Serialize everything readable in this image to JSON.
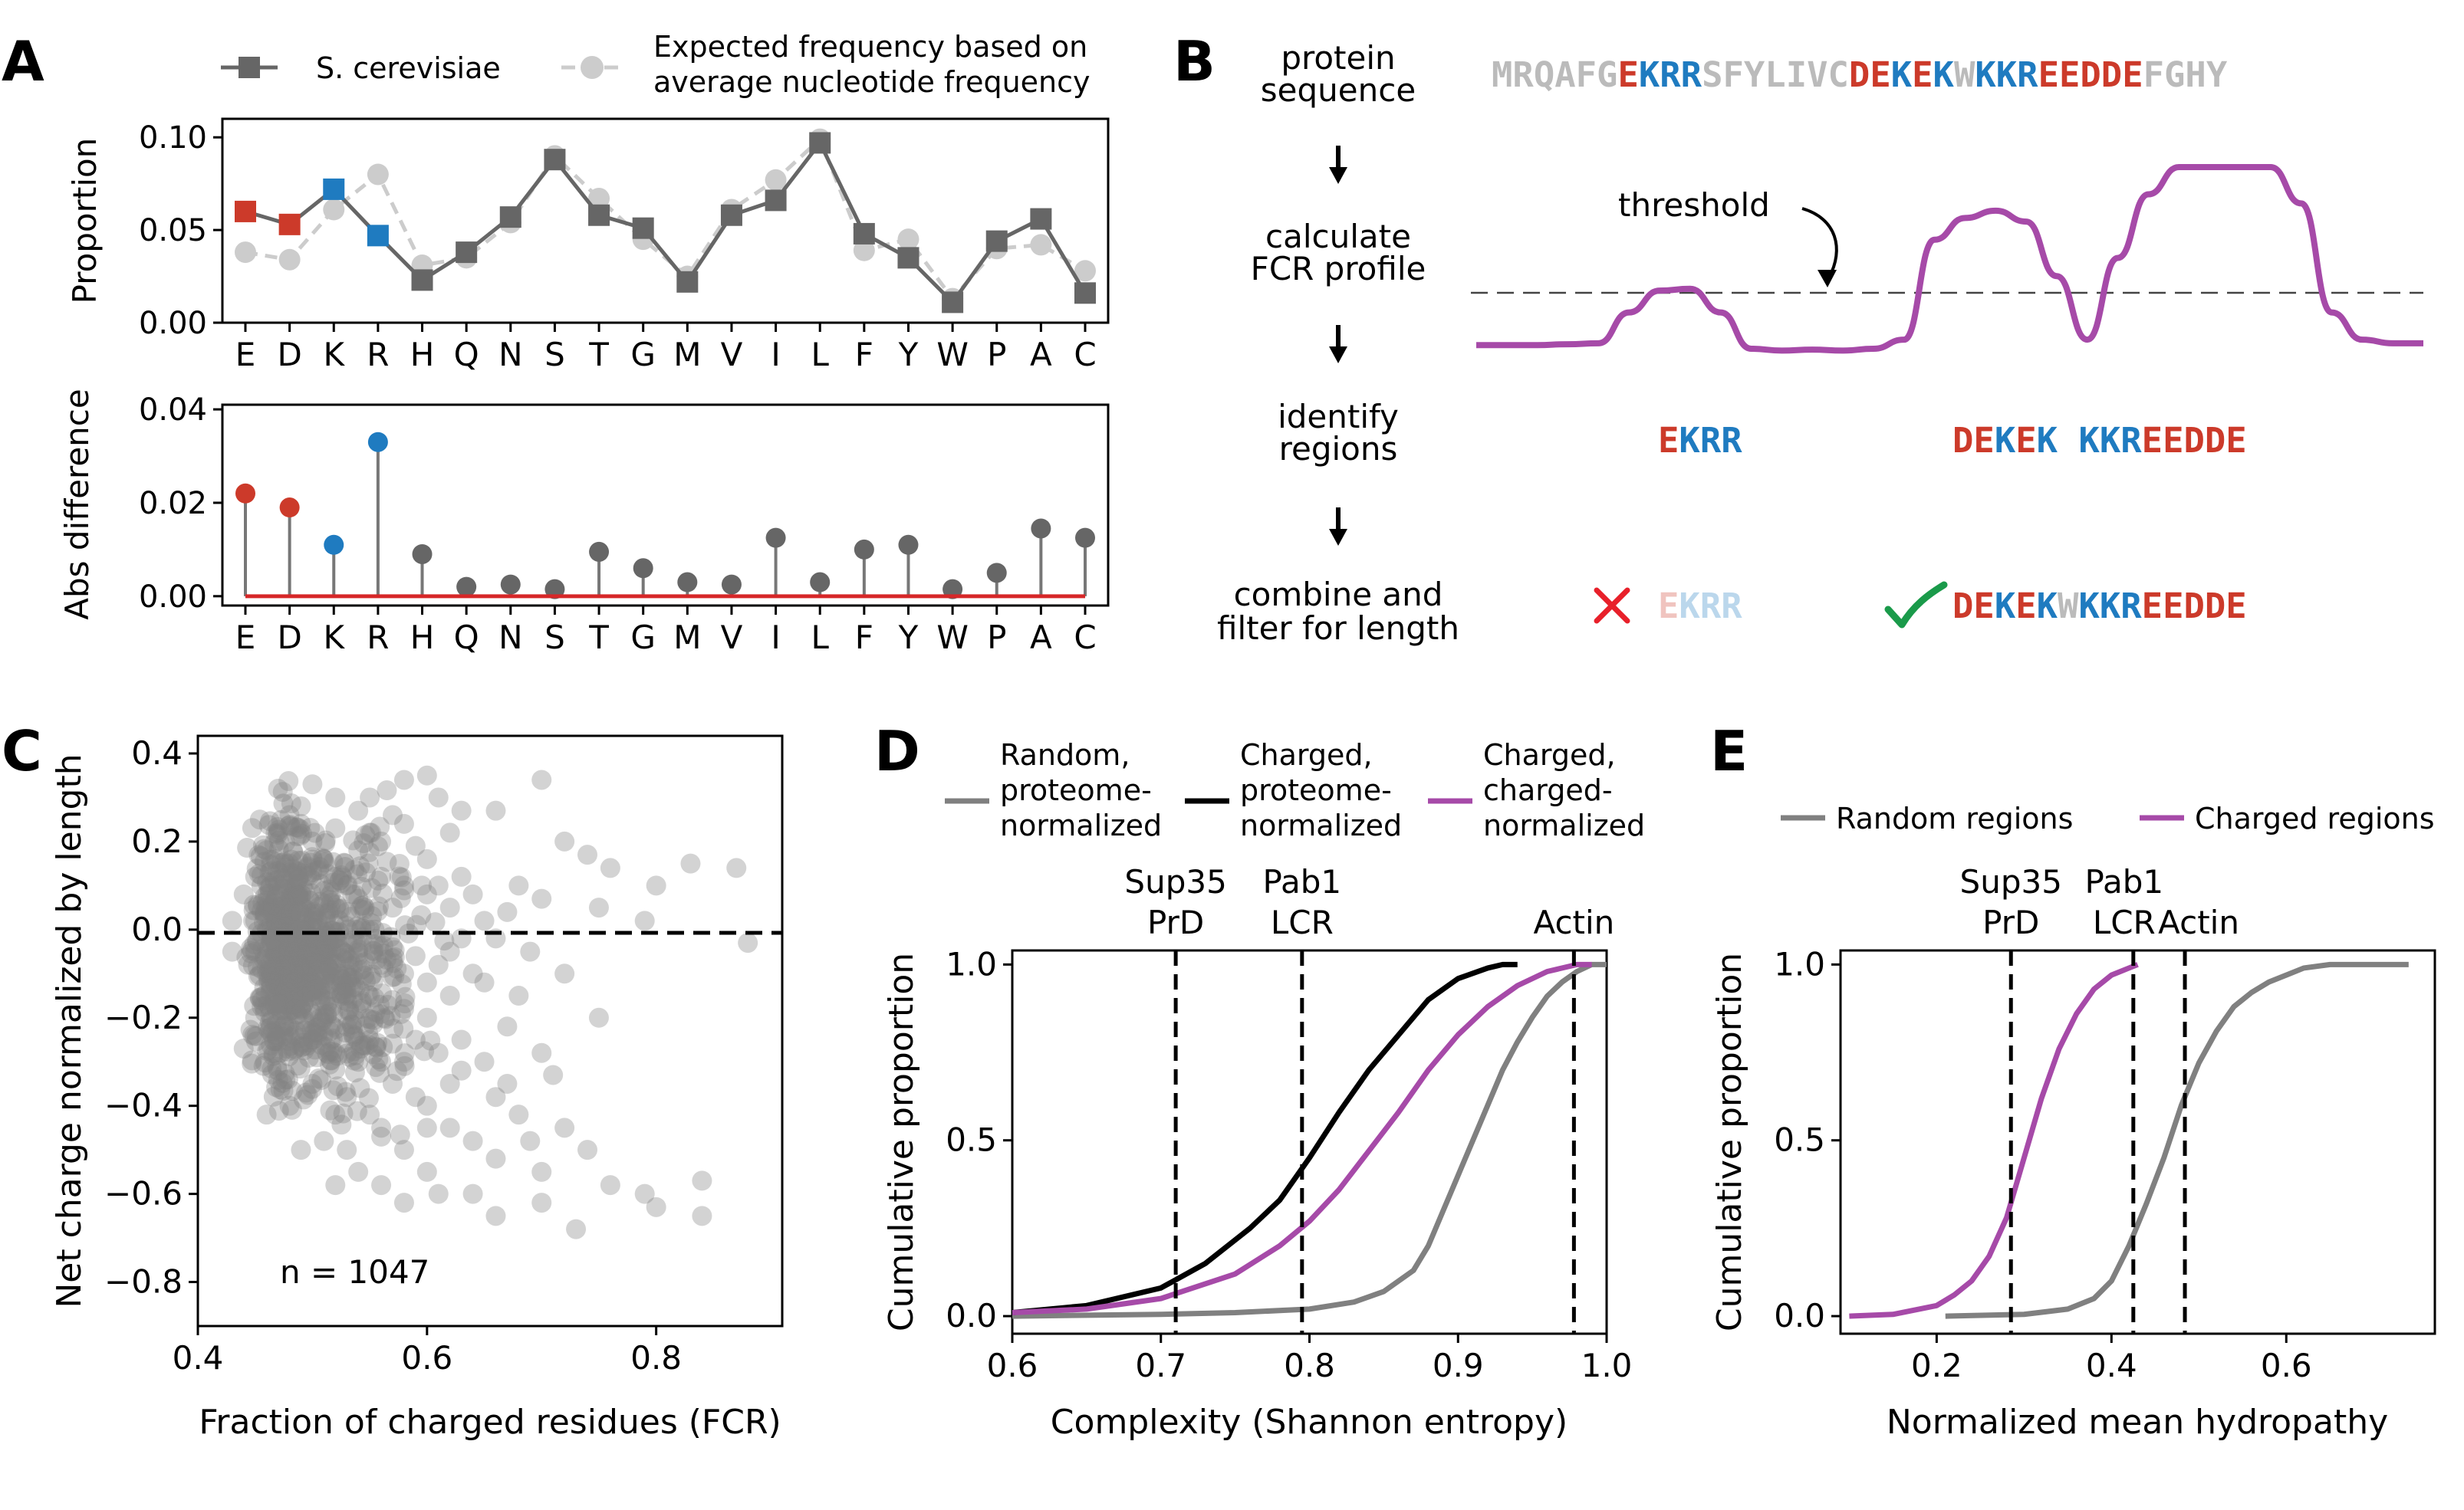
{
  "colors": {
    "acid": "#cc3a2a",
    "base": "#1f7bc0",
    "neutral": "#bbbbbb",
    "series_dark": "#666666",
    "series_light": "#cccccc",
    "charged": "#a64aa8",
    "proteome": "#000000",
    "random": "#808080",
    "baseline": "#d62728",
    "check": "#1a9a4a",
    "cross": "#e8202a"
  },
  "panel_labels": {
    "a": "A",
    "b": "B",
    "c": "C",
    "d": "D",
    "e": "E"
  },
  "panel_a": {
    "legend": {
      "series1": "S. cerevisiae",
      "series2_line1": "Expected frequency based on",
      "series2_line2": "average nucleotide frequency"
    },
    "top_ylabel": "Proportion",
    "bottom_ylabel": "Abs difference",
    "top_ytick_labels": [
      "0.00",
      "0.05",
      "0.10"
    ],
    "bottom_ytick_labels": [
      "0.00",
      "0.02",
      "0.04"
    ]
  },
  "panel_b": {
    "steps": [
      {
        "line1": "protein",
        "line2": "sequence"
      },
      {
        "line1": "calculate",
        "line2": "FCR profile"
      },
      {
        "line1": "identify",
        "line2": "regions"
      },
      {
        "line1": "combine and",
        "line2": "filter for length"
      }
    ],
    "sequence": "MRQAFGEKRRSFYLIVCDEKEKWKKREEDDEFGHY",
    "sequence_classes": "nnnnnnabbbnnnnnnnaababnbbbaaaaannnn",
    "threshold_label": "threshold",
    "fcr_profile": [
      0.02,
      0.02,
      0.02,
      0.025,
      0.03,
      0.2,
      0.32,
      0.33,
      0.2,
      0.0,
      -0.01,
      -0.005,
      -0.01,
      0.0,
      0.05,
      0.6,
      0.72,
      0.76,
      0.7,
      0.4,
      0.05,
      0.5,
      0.85,
      1.0,
      1.0,
      1.0,
      1.0,
      0.8,
      0.2,
      0.05,
      0.03,
      0.03
    ],
    "region1": {
      "text": "EKRR",
      "classes": "abbb"
    },
    "region2": {
      "text": "DEKEK KKREEDDE",
      "classes": "aabab bbbaaaaa"
    },
    "combined_rejected": {
      "text": "EKRR",
      "classes": "abbb"
    },
    "combined_accepted": {
      "text": "DEKEKWKKREEDDE",
      "classes": "aababnbbbaaaaa"
    }
  },
  "panel_c": {
    "annotation": "n = 1047",
    "dashed_y": 0.0
  },
  "panel_d": {
    "legend": [
      {
        "line1": "Random,",
        "line2": "proteome-",
        "line3": "normalized",
        "color": "#808080"
      },
      {
        "line1": "Charged,",
        "line2": "proteome-",
        "line3": "normalized",
        "color": "#000000"
      },
      {
        "line1": "Charged,",
        "line2": "charged-",
        "line3": "normalized",
        "color": "#a64aa8"
      }
    ],
    "markers": [
      {
        "line1": "Sup35",
        "line2": "PrD",
        "x": 0.71
      },
      {
        "line1": "Pab1",
        "line2": "LCR",
        "x": 0.795
      },
      {
        "line1": "",
        "line2": "Actin",
        "x": 0.978
      }
    ]
  },
  "panel_e": {
    "legend": [
      {
        "label": "Random regions",
        "color": "#808080"
      },
      {
        "label": "Charged regions",
        "color": "#a64aa8"
      }
    ],
    "markers": [
      {
        "line1": "Sup35",
        "line2": "PrD",
        "x": 0.285
      },
      {
        "line1": "Pab1",
        "line2": "LCR",
        "x": 0.425
      },
      {
        "line1": "",
        "line2": "Actin",
        "x": 0.484
      }
    ]
  },
  "chart_data": [
    {
      "type": "line",
      "panel": "A-top",
      "title": "",
      "xlabel": "",
      "ylabel": "Proportion",
      "categories": [
        "E",
        "D",
        "K",
        "R",
        "H",
        "Q",
        "N",
        "S",
        "T",
        "G",
        "M",
        "V",
        "I",
        "L",
        "F",
        "Y",
        "W",
        "P",
        "A",
        "C"
      ],
      "ylim": [
        0,
        0.11
      ],
      "yticks": [
        0.0,
        0.05,
        0.1
      ],
      "series": [
        {
          "name": "S. cerevisiae",
          "values": [
            0.06,
            0.053,
            0.072,
            0.047,
            0.023,
            0.038,
            0.057,
            0.088,
            0.058,
            0.051,
            0.022,
            0.058,
            0.066,
            0.097,
            0.048,
            0.035,
            0.011,
            0.044,
            0.056,
            0.016
          ]
        },
        {
          "name": "Expected frequency based on average nucleotide frequency",
          "values": [
            0.038,
            0.034,
            0.061,
            0.08,
            0.031,
            0.035,
            0.054,
            0.09,
            0.067,
            0.045,
            0.025,
            0.061,
            0.077,
            0.099,
            0.039,
            0.045,
            0.013,
            0.04,
            0.042,
            0.028
          ]
        }
      ],
      "highlight": {
        "E": "acid",
        "D": "acid",
        "K": "base",
        "R": "base"
      }
    },
    {
      "type": "stem",
      "panel": "A-bottom",
      "title": "",
      "xlabel": "",
      "ylabel": "Abs difference",
      "categories": [
        "E",
        "D",
        "K",
        "R",
        "H",
        "Q",
        "N",
        "S",
        "T",
        "G",
        "M",
        "V",
        "I",
        "L",
        "F",
        "Y",
        "W",
        "P",
        "A",
        "C"
      ],
      "values": [
        0.022,
        0.019,
        0.011,
        0.033,
        0.009,
        0.002,
        0.0025,
        0.0015,
        0.0095,
        0.006,
        0.003,
        0.0025,
        0.0125,
        0.003,
        0.01,
        0.011,
        0.0015,
        0.005,
        0.0145,
        0.0125
      ],
      "ylim": [
        -0.002,
        0.041
      ],
      "yticks": [
        0.0,
        0.02,
        0.04
      ]
    },
    {
      "type": "scatter",
      "panel": "C",
      "title": "",
      "xlabel": "Fraction of charged residues (FCR)",
      "ylabel": "Net charge normalized by length",
      "xlim": [
        0.4,
        0.91
      ],
      "ylim": [
        -0.9,
        0.44
      ],
      "xticks": [
        0.4,
        0.6,
        0.8
      ],
      "yticks": [
        -0.8,
        -0.6,
        -0.4,
        -0.2,
        0.0,
        0.2,
        0.4
      ],
      "n": 1047,
      "points": [
        [
          0.47,
          0.32
        ],
        [
          0.5,
          0.33
        ],
        [
          0.52,
          0.3
        ],
        [
          0.54,
          0.27
        ],
        [
          0.58,
          0.34
        ],
        [
          0.6,
          0.35
        ],
        [
          0.61,
          0.3
        ],
        [
          0.62,
          0.22
        ],
        [
          0.63,
          0.27
        ],
        [
          0.66,
          0.27
        ],
        [
          0.7,
          0.34
        ],
        [
          0.72,
          0.2
        ],
        [
          0.74,
          0.17
        ],
        [
          0.76,
          0.14
        ],
        [
          0.8,
          0.1
        ],
        [
          0.83,
          0.15
        ],
        [
          0.87,
          0.14
        ],
        [
          0.68,
          0.1
        ],
        [
          0.7,
          0.07
        ],
        [
          0.75,
          0.05
        ],
        [
          0.79,
          0.02
        ],
        [
          0.88,
          -0.03
        ],
        [
          0.69,
          -0.05
        ],
        [
          0.72,
          -0.1
        ],
        [
          0.65,
          -0.12
        ],
        [
          0.75,
          -0.2
        ],
        [
          0.67,
          -0.22
        ],
        [
          0.7,
          -0.28
        ],
        [
          0.63,
          -0.32
        ],
        [
          0.66,
          -0.38
        ],
        [
          0.68,
          -0.42
        ],
        [
          0.72,
          -0.45
        ],
        [
          0.74,
          -0.5
        ],
        [
          0.7,
          -0.55
        ],
        [
          0.76,
          -0.58
        ],
        [
          0.79,
          -0.6
        ],
        [
          0.8,
          -0.63
        ],
        [
          0.84,
          -0.57
        ],
        [
          0.84,
          -0.65
        ],
        [
          0.73,
          -0.68
        ],
        [
          0.7,
          -0.62
        ],
        [
          0.66,
          -0.52
        ],
        [
          0.64,
          -0.48
        ],
        [
          0.62,
          -0.45
        ],
        [
          0.6,
          -0.4
        ],
        [
          0.58,
          -0.5
        ],
        [
          0.56,
          -0.47
        ],
        [
          0.55,
          -0.42
        ],
        [
          0.53,
          -0.38
        ],
        [
          0.51,
          -0.48
        ],
        [
          0.49,
          -0.5
        ],
        [
          0.46,
          -0.42
        ],
        [
          0.44,
          -0.27
        ],
        [
          0.45,
          -0.2
        ],
        [
          0.43,
          -0.05
        ],
        [
          0.43,
          0.02
        ],
        [
          0.44,
          0.08
        ],
        [
          0.45,
          0.12
        ],
        [
          0.46,
          0.18
        ],
        [
          0.47,
          0.22
        ],
        [
          0.48,
          0.26
        ],
        [
          0.49,
          0.24
        ],
        [
          0.5,
          0.2
        ],
        [
          0.51,
          0.16
        ],
        [
          0.52,
          0.12
        ],
        [
          0.53,
          0.1
        ],
        [
          0.54,
          0.18
        ],
        [
          0.55,
          0.22
        ],
        [
          0.56,
          0.2
        ],
        [
          0.57,
          0.26
        ],
        [
          0.58,
          0.24
        ],
        [
          0.59,
          0.19
        ],
        [
          0.6,
          0.16
        ],
        [
          0.61,
          0.1
        ],
        [
          0.62,
          0.05
        ],
        [
          0.63,
          0.12
        ],
        [
          0.64,
          0.08
        ],
        [
          0.65,
          0.02
        ],
        [
          0.66,
          -0.02
        ],
        [
          0.67,
          0.04
        ],
        [
          0.64,
          -0.1
        ],
        [
          0.62,
          -0.15
        ],
        [
          0.6,
          -0.2
        ],
        [
          0.59,
          -0.25
        ],
        [
          0.58,
          -0.3
        ],
        [
          0.57,
          -0.35
        ],
        [
          0.56,
          -0.3
        ],
        [
          0.55,
          -0.25
        ],
        [
          0.54,
          -0.3
        ],
        [
          0.53,
          -0.22
        ],
        [
          0.52,
          -0.28
        ],
        [
          0.51,
          -0.2
        ],
        [
          0.5,
          -0.25
        ],
        [
          0.49,
          -0.18
        ],
        [
          0.48,
          -0.22
        ],
        [
          0.47,
          -0.15
        ],
        [
          0.46,
          -0.1
        ],
        [
          0.45,
          -0.05
        ],
        [
          0.46,
          0.05
        ],
        [
          0.47,
          0.1
        ],
        [
          0.48,
          0.05
        ],
        [
          0.49,
          0.08
        ],
        [
          0.5,
          0.02
        ],
        [
          0.51,
          0.06
        ],
        [
          0.52,
          -0.02
        ],
        [
          0.53,
          0.04
        ],
        [
          0.54,
          -0.06
        ],
        [
          0.55,
          0.0
        ],
        [
          0.56,
          -0.08
        ],
        [
          0.57,
          -0.04
        ],
        [
          0.58,
          -0.1
        ],
        [
          0.59,
          -0.06
        ],
        [
          0.6,
          -0.12
        ],
        [
          0.61,
          -0.08
        ],
        [
          0.62,
          -0.05
        ],
        [
          0.63,
          -0.02
        ],
        [
          0.5,
          -0.35
        ],
        [
          0.52,
          -0.42
        ],
        [
          0.54,
          -0.55
        ],
        [
          0.56,
          -0.58
        ],
        [
          0.6,
          -0.55
        ],
        [
          0.61,
          -0.6
        ],
        [
          0.58,
          -0.62
        ],
        [
          0.52,
          -0.58
        ],
        [
          0.48,
          -0.4
        ],
        [
          0.47,
          -0.32
        ],
        [
          0.6,
          -0.45
        ],
        [
          0.65,
          -0.3
        ],
        [
          0.68,
          -0.15
        ],
        [
          0.71,
          -0.33
        ],
        [
          0.69,
          -0.48
        ],
        [
          0.64,
          -0.6
        ],
        [
          0.66,
          -0.65
        ],
        [
          0.5,
          -0.12
        ],
        [
          0.55,
          -0.15
        ],
        [
          0.57,
          0.05
        ],
        [
          0.45,
          0.02
        ],
        [
          0.52,
          0.23
        ],
        [
          0.56,
          0.12
        ],
        [
          0.6,
          0.08
        ],
        [
          0.63,
          -0.25
        ],
        [
          0.67,
          -0.35
        ],
        [
          0.55,
          0.3
        ],
        [
          0.58,
          0.1
        ],
        [
          0.62,
          -0.35
        ],
        [
          0.49,
          0.28
        ],
        [
          0.51,
          -0.05
        ],
        [
          0.53,
          -0.12
        ],
        [
          0.54,
          0.07
        ],
        [
          0.5,
          0.13
        ],
        [
          0.58,
          -0.18
        ],
        [
          0.61,
          -0.28
        ],
        [
          0.59,
          -0.38
        ],
        [
          0.56,
          -0.45
        ],
        [
          0.53,
          -0.5
        ],
        [
          0.49,
          -0.08
        ],
        [
          0.47,
          -0.02
        ],
        [
          0.48,
          0.15
        ]
      ]
    },
    {
      "type": "line",
      "panel": "D",
      "title": "",
      "xlabel": "Complexity (Shannon entropy)",
      "ylabel": "Cumulative proportion",
      "xlim": [
        0.6,
        1.0
      ],
      "ylim": [
        -0.05,
        1.04
      ],
      "xticks": [
        0.6,
        0.7,
        0.8,
        0.9,
        1.0
      ],
      "yticks": [
        0.0,
        0.5,
        1.0
      ],
      "series": [
        {
          "name": "Random, proteome-normalized",
          "x": [
            0.6,
            0.7,
            0.75,
            0.8,
            0.83,
            0.85,
            0.87,
            0.88,
            0.89,
            0.9,
            0.91,
            0.92,
            0.93,
            0.94,
            0.95,
            0.96,
            0.97,
            0.98,
            0.99,
            1.0
          ],
          "y": [
            0.0,
            0.005,
            0.01,
            0.02,
            0.04,
            0.07,
            0.13,
            0.2,
            0.3,
            0.4,
            0.5,
            0.6,
            0.7,
            0.78,
            0.85,
            0.91,
            0.95,
            0.98,
            1.0,
            1.0
          ]
        },
        {
          "name": "Charged, proteome-normalized",
          "x": [
            0.6,
            0.65,
            0.7,
            0.73,
            0.76,
            0.78,
            0.8,
            0.82,
            0.84,
            0.86,
            0.88,
            0.9,
            0.92,
            0.93,
            0.94
          ],
          "y": [
            0.01,
            0.03,
            0.08,
            0.15,
            0.25,
            0.33,
            0.45,
            0.58,
            0.7,
            0.8,
            0.9,
            0.96,
            0.99,
            1.0,
            1.0
          ]
        },
        {
          "name": "Charged, charged-normalized",
          "x": [
            0.6,
            0.65,
            0.7,
            0.75,
            0.78,
            0.8,
            0.82,
            0.84,
            0.86,
            0.88,
            0.9,
            0.92,
            0.94,
            0.96,
            0.98,
            0.99
          ],
          "y": [
            0.01,
            0.02,
            0.05,
            0.12,
            0.2,
            0.27,
            0.36,
            0.47,
            0.58,
            0.7,
            0.8,
            0.88,
            0.94,
            0.98,
            1.0,
            1.0
          ]
        }
      ]
    },
    {
      "type": "line",
      "panel": "E",
      "title": "",
      "xlabel": "Normalized mean hydropathy",
      "ylabel": "Cumulative proportion",
      "xlim": [
        0.09,
        0.77
      ],
      "ylim": [
        -0.05,
        1.04
      ],
      "xticks": [
        0.2,
        0.4,
        0.6
      ],
      "yticks": [
        0.0,
        0.5,
        1.0
      ],
      "series": [
        {
          "name": "Random regions",
          "x": [
            0.21,
            0.3,
            0.35,
            0.38,
            0.4,
            0.42,
            0.44,
            0.46,
            0.48,
            0.5,
            0.52,
            0.54,
            0.56,
            0.58,
            0.6,
            0.62,
            0.65,
            0.68,
            0.72,
            0.74
          ],
          "y": [
            0.0,
            0.005,
            0.02,
            0.05,
            0.1,
            0.2,
            0.32,
            0.45,
            0.6,
            0.72,
            0.81,
            0.88,
            0.92,
            0.95,
            0.97,
            0.99,
            1.0,
            1.0,
            1.0,
            1.0
          ]
        },
        {
          "name": "Charged regions",
          "x": [
            0.1,
            0.15,
            0.2,
            0.22,
            0.24,
            0.26,
            0.28,
            0.3,
            0.32,
            0.34,
            0.36,
            0.38,
            0.4,
            0.42,
            0.43
          ],
          "y": [
            0.0,
            0.005,
            0.03,
            0.06,
            0.1,
            0.17,
            0.28,
            0.45,
            0.62,
            0.76,
            0.86,
            0.93,
            0.97,
            0.99,
            1.0
          ]
        }
      ]
    }
  ]
}
